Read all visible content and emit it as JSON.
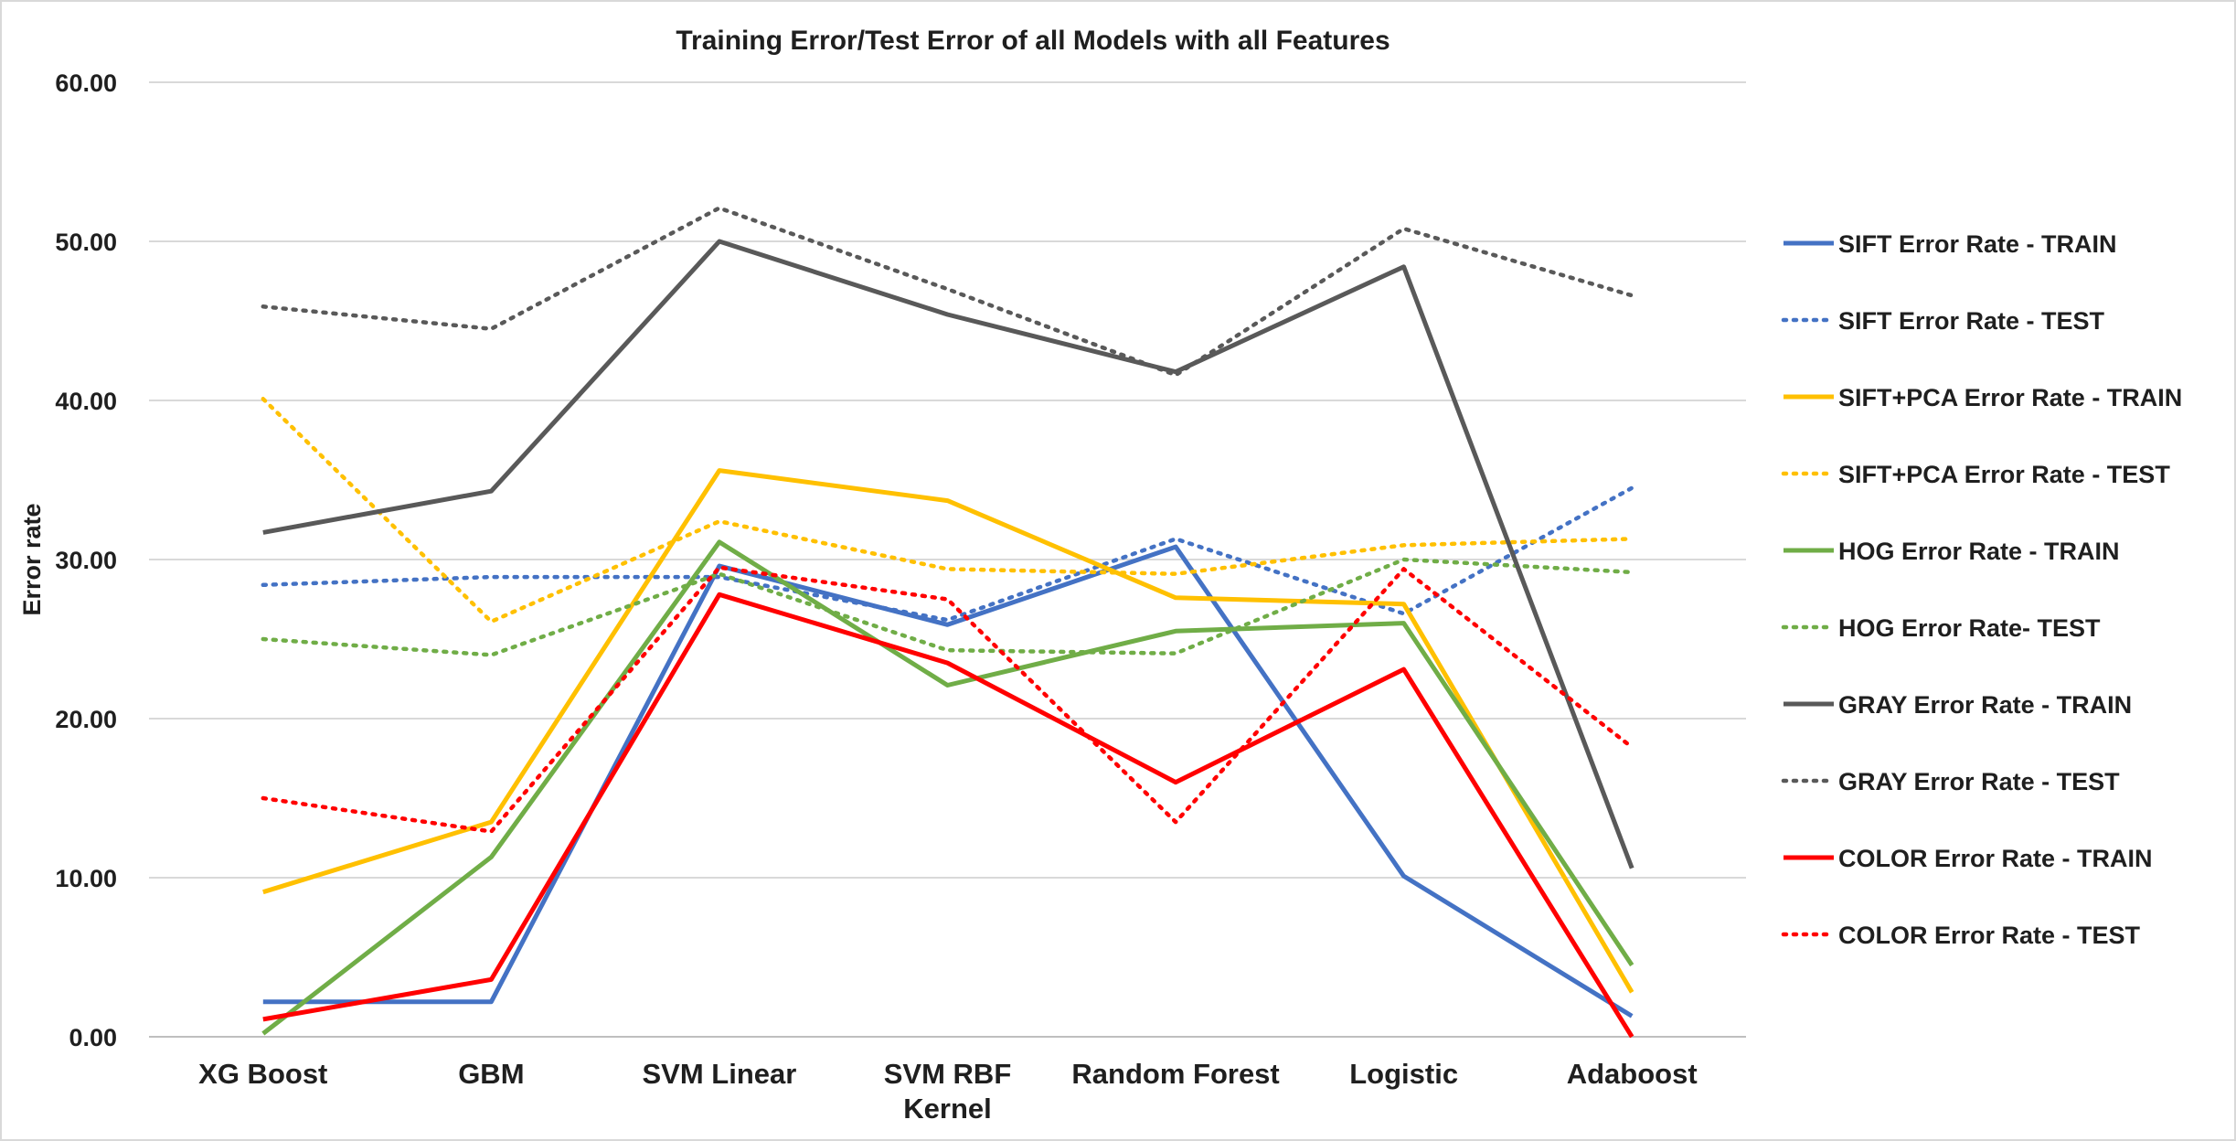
{
  "chart_data": {
    "type": "line",
    "title": "Training Error/Test Error of all Models with all Features",
    "xlabel": "",
    "ylabel": "Error rate",
    "ylim": [
      0,
      60
    ],
    "yticks": [
      "0.00",
      "10.00",
      "20.00",
      "30.00",
      "40.00",
      "50.00",
      "60.00"
    ],
    "grid": true,
    "legend": "right",
    "categories": [
      "XG Boost",
      "GBM",
      "SVM Linear",
      "SVM RBF Kernel",
      "Random Forest",
      "Logistic",
      "Adaboost"
    ],
    "category_lines": [
      [
        "XG Boost"
      ],
      [
        "GBM"
      ],
      [
        "SVM Linear"
      ],
      [
        "SVM RBF",
        "Kernel"
      ],
      [
        "Random Forest"
      ],
      [
        "Logistic"
      ],
      [
        "Adaboost"
      ]
    ],
    "series": [
      {
        "name": "SIFT Error Rate - TRAIN",
        "color": "#4472c4",
        "style": "solid",
        "values": [
          2.2,
          2.2,
          29.6,
          25.9,
          30.8,
          10.1,
          1.3
        ]
      },
      {
        "name": "SIFT Error Rate - TEST",
        "color": "#4472c4",
        "style": "dotted",
        "values": [
          28.4,
          28.9,
          28.9,
          26.2,
          31.3,
          26.6,
          34.5
        ]
      },
      {
        "name": "SIFT+PCA Error Rate - TRAIN",
        "color": "#ffc000",
        "style": "solid",
        "values": [
          9.1,
          13.5,
          35.6,
          33.7,
          27.6,
          27.2,
          2.8
        ]
      },
      {
        "name": "SIFT+PCA Error Rate - TEST",
        "color": "#ffc000",
        "style": "dotted",
        "values": [
          40.1,
          26.1,
          32.4,
          29.4,
          29.1,
          30.9,
          31.3
        ]
      },
      {
        "name": "HOG Error Rate - TRAIN",
        "color": "#70ad47",
        "style": "solid",
        "values": [
          0.2,
          11.3,
          31.1,
          22.1,
          25.5,
          26.0,
          4.5
        ]
      },
      {
        "name": "HOG Error Rate- TEST",
        "color": "#70ad47",
        "style": "dotted",
        "values": [
          25.0,
          24.0,
          29.1,
          24.3,
          24.1,
          30.0,
          29.2
        ]
      },
      {
        "name": "GRAY Error Rate - TRAIN",
        "color": "#595959",
        "style": "solid",
        "values": [
          31.7,
          34.3,
          50.0,
          45.4,
          41.8,
          48.4,
          10.6
        ]
      },
      {
        "name": "GRAY Error Rate - TEST",
        "color": "#595959",
        "style": "dotted",
        "values": [
          45.9,
          44.5,
          52.1,
          47.0,
          41.6,
          50.8,
          46.6
        ]
      },
      {
        "name": "COLOR Error Rate - TRAIN",
        "color": "#ff0000",
        "style": "solid",
        "values": [
          1.1,
          3.6,
          27.8,
          23.5,
          16.0,
          23.1,
          0.0
        ]
      },
      {
        "name": "COLOR Error Rate - TEST",
        "color": "#ff0000",
        "style": "dotted",
        "values": [
          15.0,
          12.9,
          29.5,
          27.5,
          13.5,
          29.4,
          18.2
        ]
      }
    ]
  }
}
